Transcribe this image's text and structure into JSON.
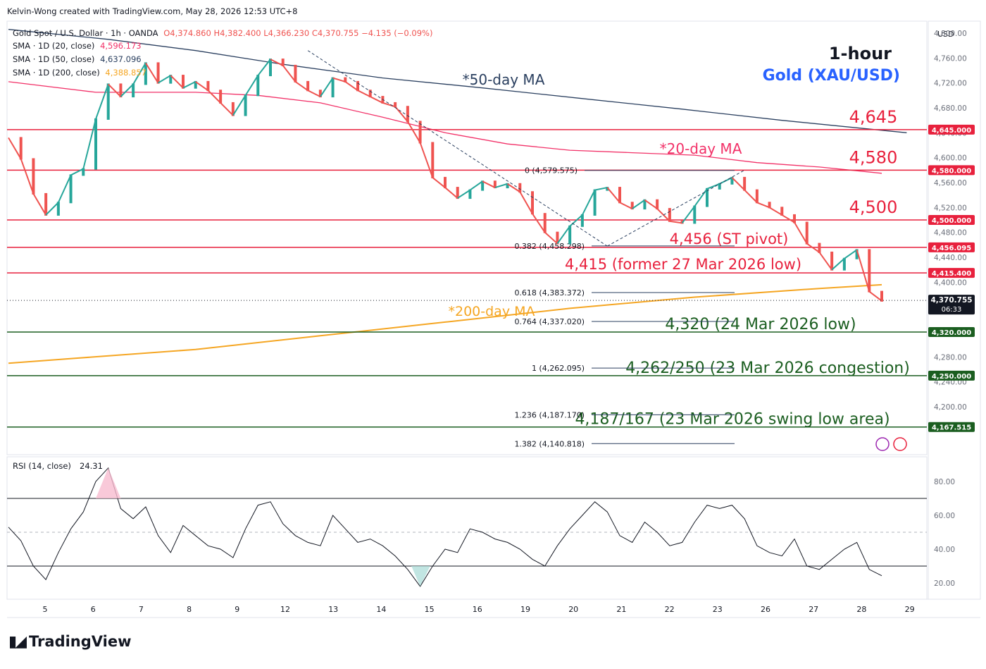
{
  "header": {
    "author_line": "Kelvin-Wong created with TradingView.com, May 28, 2026 12:53 UTC+8"
  },
  "legend": {
    "symbol": "Gold Spot / U.S. Dollar · 1h · OANDA",
    "ohlc": "O4,374.860 H4,382.400 L4,366.230 C4,370.755 −4.135 (−0.09%)",
    "sma20_label": "SMA · 1D (20, close)",
    "sma20_value": "4,596.173",
    "sma50_label": "SMA · 1D (50, close)",
    "sma50_value": "4,637.096",
    "sma200_label": "SMA · 1D (200, close)",
    "sma200_value": "4,388.857"
  },
  "branding": {
    "logo": "TradingView"
  },
  "colors": {
    "up": "#26a69a",
    "down": "#ef5350",
    "resistance": "#e8213d",
    "support": "#1b5e20",
    "sma20": "#f23168",
    "sma50": "#2a3f5f",
    "sma200": "#f5a623",
    "blue_title": "#2962ff",
    "rsi": "#131722"
  },
  "chart_data": [
    {
      "type": "line",
      "title": "1-hour",
      "subtitle": "Gold (XAU/USD)",
      "currency": "USD",
      "ylim": [
        4140,
        4820
      ],
      "y_ticks": [
        4200,
        4240,
        4280,
        4320,
        4360,
        4400,
        4440,
        4480,
        4520,
        4560,
        4600,
        4640,
        4680,
        4720,
        4760,
        4800
      ],
      "x_ticks": [
        "5",
        "6",
        "7",
        "8",
        "9",
        "12",
        "13",
        "14",
        "15",
        "16",
        "19",
        "20",
        "21",
        "22",
        "23",
        "26",
        "27",
        "28",
        "29"
      ],
      "series": [
        {
          "key": "price",
          "points": [
            [
              0,
              4632
            ],
            [
              1,
              4598
            ],
            [
              2,
              4542
            ],
            [
              3,
              4508
            ],
            [
              4,
              4528
            ],
            [
              5,
              4572
            ],
            [
              6,
              4582
            ],
            [
              7,
              4662
            ],
            [
              8,
              4718
            ],
            [
              9,
              4698
            ],
            [
              10,
              4718
            ],
            [
              11,
              4752
            ],
            [
              12,
              4720
            ],
            [
              13,
              4732
            ],
            [
              14,
              4712
            ],
            [
              15,
              4722
            ],
            [
              16,
              4708
            ],
            [
              17,
              4688
            ],
            [
              18,
              4668
            ],
            [
              19,
              4700
            ],
            [
              20,
              4732
            ],
            [
              21,
              4758
            ],
            [
              22,
              4748
            ],
            [
              23,
              4722
            ],
            [
              24,
              4708
            ],
            [
              25,
              4698
            ],
            [
              26,
              4728
            ],
            [
              27,
              4722
            ],
            [
              28,
              4708
            ],
            [
              29,
              4698
            ],
            [
              30,
              4688
            ],
            [
              31,
              4682
            ],
            [
              32,
              4658
            ],
            [
              33,
              4624
            ],
            [
              34,
              4568
            ],
            [
              35,
              4552
            ],
            [
              36,
              4535
            ],
            [
              37,
              4548
            ],
            [
              38,
              4562
            ],
            [
              39,
              4552
            ],
            [
              40,
              4558
            ],
            [
              41,
              4545
            ],
            [
              42,
              4510
            ],
            [
              43,
              4480
            ],
            [
              44,
              4462
            ],
            [
              45,
              4490
            ],
            [
              46,
              4508
            ],
            [
              47,
              4548
            ],
            [
              48,
              4552
            ],
            [
              49,
              4528
            ],
            [
              50,
              4518
            ],
            [
              51,
              4532
            ],
            [
              52,
              4518
            ],
            [
              53,
              4498
            ],
            [
              54,
              4495
            ],
            [
              55,
              4522
            ],
            [
              56,
              4550
            ],
            [
              57,
              4558
            ],
            [
              58,
              4568
            ],
            [
              59,
              4548
            ],
            [
              60,
              4528
            ],
            [
              61,
              4520
            ],
            [
              62,
              4508
            ],
            [
              63,
              4496
            ],
            [
              64,
              4462
            ],
            [
              65,
              4448
            ],
            [
              66,
              4420
            ],
            [
              67,
              4438
            ],
            [
              68,
              4452
            ],
            [
              69,
              4385
            ],
            [
              70,
              4370
            ]
          ]
        },
        {
          "key": "sma20",
          "points": [
            [
              0,
              4722
            ],
            [
              7,
              4705
            ],
            [
              15,
              4705
            ],
            [
              20,
              4700
            ],
            [
              25,
              4688
            ],
            [
              30,
              4665
            ],
            [
              35,
              4640
            ],
            [
              40,
              4622
            ],
            [
              45,
              4612
            ],
            [
              50,
              4608
            ],
            [
              55,
              4604
            ],
            [
              60,
              4592
            ],
            [
              65,
              4585
            ],
            [
              70,
              4575
            ]
          ]
        },
        {
          "key": "sma50",
          "points": [
            [
              0,
              4806
            ],
            [
              8,
              4790
            ],
            [
              15,
              4772
            ],
            [
              22,
              4750
            ],
            [
              30,
              4728
            ],
            [
              38,
              4712
            ],
            [
              46,
              4695
            ],
            [
              54,
              4678
            ],
            [
              62,
              4660
            ],
            [
              68,
              4648
            ],
            [
              72,
              4640
            ]
          ]
        },
        {
          "key": "sma200",
          "points": [
            [
              0,
              4270
            ],
            [
              15,
              4292
            ],
            [
              25,
              4314
            ],
            [
              35,
              4336
            ],
            [
              45,
              4358
            ],
            [
              55,
              4376
            ],
            [
              65,
              4390
            ],
            [
              70,
              4396
            ]
          ]
        }
      ],
      "horizontal_levels": [
        {
          "value": 4645,
          "label": "4,645",
          "axis_label": "4,645.000",
          "kind": "resistance"
        },
        {
          "value": 4580,
          "label": "4,580",
          "axis_label": "4,580.000",
          "kind": "resistance"
        },
        {
          "value": 4500,
          "label": "4,500",
          "axis_label": "4,500.000",
          "kind": "resistance"
        },
        {
          "value": 4456,
          "label": "4,456 (ST pivot)",
          "axis_label": "4,456.095",
          "kind": "resistance"
        },
        {
          "value": 4415,
          "label": "4,415 (former 27 Mar 2026 low)",
          "axis_label": "4,415.400",
          "kind": "resistance"
        },
        {
          "value": 4320,
          "label": "4,320 (24 Mar 2026 low)",
          "axis_label": "4,320.000",
          "kind": "support"
        },
        {
          "value": 4250,
          "label": "4,262/250 (23 Mar 2026 congestion)",
          "axis_label": "4,250.000",
          "kind": "support"
        },
        {
          "value": 4167.5,
          "label": "4,187/167 (23 Mar 2026 swing low area)",
          "axis_label": "4,167.515",
          "kind": "support"
        }
      ],
      "ma_labels": {
        "sma50": "*50-day MA",
        "sma20": "*20-day MA",
        "sma200": "*200-day MA"
      },
      "fib_levels": [
        {
          "ratio": "0",
          "value": 4579.575,
          "label": "0 (4,579.575)"
        },
        {
          "ratio": "0.382",
          "value": 4458.298,
          "label": "0.382 (4,458.298)"
        },
        {
          "ratio": "0.618",
          "value": 4383.372,
          "label": "0.618 (4,383.372)"
        },
        {
          "ratio": "0.764",
          "value": 4337.02,
          "label": "0.764 (4,337.020)"
        },
        {
          "ratio": "1",
          "value": 4262.095,
          "label": "1 (4,262.095)"
        },
        {
          "ratio": "1.236",
          "value": 4187.17,
          "label": "1.236 (4,187.170)"
        },
        {
          "ratio": "1.382",
          "value": 4140.818,
          "label": "1.382 (4,140.818)"
        }
      ],
      "last_price": {
        "value": 4370.755,
        "label": "4,370.755",
        "countdown": "06:33"
      }
    },
    {
      "type": "line",
      "title": "RSI (14, close)",
      "last_value": "24.31",
      "ylim": [
        10,
        95
      ],
      "y_ticks": [
        20,
        40,
        60,
        80
      ],
      "bands": [
        30,
        50,
        70
      ],
      "series": [
        {
          "key": "rsi",
          "points": [
            [
              0,
              53
            ],
            [
              1,
              45
            ],
            [
              2,
              30
            ],
            [
              3,
              22
            ],
            [
              4,
              38
            ],
            [
              5,
              52
            ],
            [
              6,
              62
            ],
            [
              7,
              80
            ],
            [
              8,
              88
            ],
            [
              9,
              64
            ],
            [
              10,
              58
            ],
            [
              11,
              65
            ],
            [
              12,
              48
            ],
            [
              13,
              38
            ],
            [
              14,
              54
            ],
            [
              15,
              48
            ],
            [
              16,
              42
            ],
            [
              17,
              40
            ],
            [
              18,
              35
            ],
            [
              19,
              52
            ],
            [
              20,
              66
            ],
            [
              21,
              68
            ],
            [
              22,
              55
            ],
            [
              23,
              48
            ],
            [
              24,
              44
            ],
            [
              25,
              42
            ],
            [
              26,
              60
            ],
            [
              27,
              52
            ],
            [
              28,
              44
            ],
            [
              29,
              46
            ],
            [
              30,
              42
            ],
            [
              31,
              36
            ],
            [
              32,
              28
            ],
            [
              33,
              18
            ],
            [
              34,
              30
            ],
            [
              35,
              40
            ],
            [
              36,
              38
            ],
            [
              37,
              52
            ],
            [
              38,
              50
            ],
            [
              39,
              46
            ],
            [
              40,
              44
            ],
            [
              41,
              40
            ],
            [
              42,
              34
            ],
            [
              43,
              30
            ],
            [
              44,
              42
            ],
            [
              45,
              52
            ],
            [
              46,
              60
            ],
            [
              47,
              68
            ],
            [
              48,
              62
            ],
            [
              49,
              48
            ],
            [
              50,
              44
            ],
            [
              51,
              56
            ],
            [
              52,
              50
            ],
            [
              53,
              42
            ],
            [
              54,
              44
            ],
            [
              55,
              56
            ],
            [
              56,
              66
            ],
            [
              57,
              64
            ],
            [
              58,
              66
            ],
            [
              59,
              58
            ],
            [
              60,
              42
            ],
            [
              61,
              38
            ],
            [
              62,
              36
            ],
            [
              63,
              46
            ],
            [
              64,
              30
            ],
            [
              65,
              28
            ],
            [
              66,
              34
            ],
            [
              67,
              40
            ],
            [
              68,
              44
            ],
            [
              69,
              28
            ],
            [
              70,
              24.31
            ]
          ]
        }
      ]
    }
  ]
}
